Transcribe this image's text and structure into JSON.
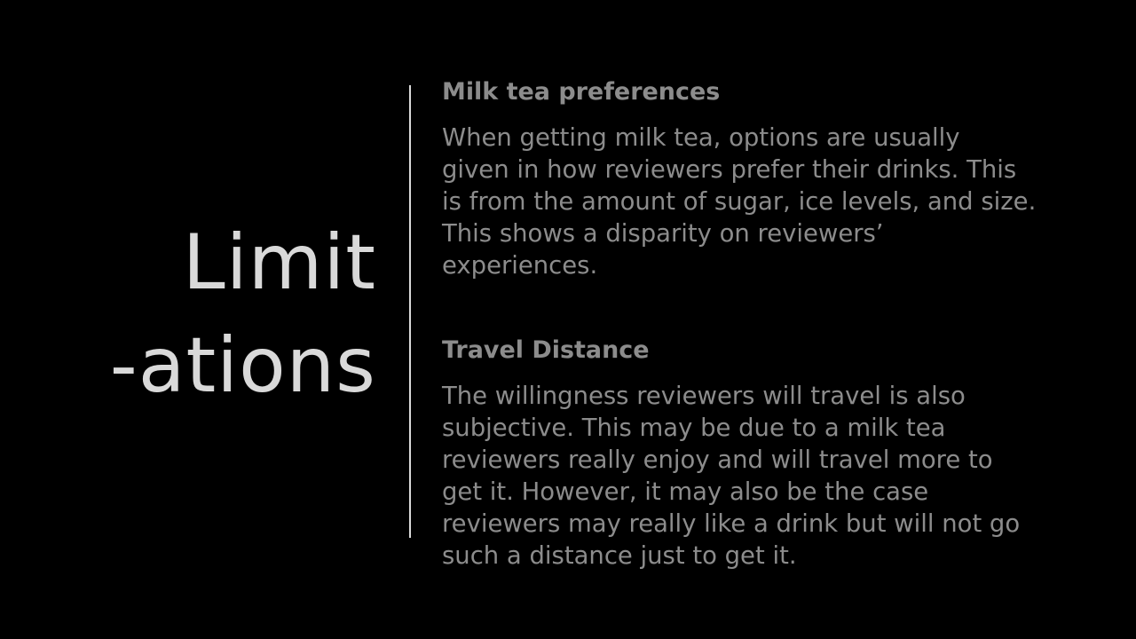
{
  "title": {
    "line1": "Limit",
    "line2": "-ations"
  },
  "sections": [
    {
      "heading": "Milk tea preferences",
      "lines": [
        "When getting milk tea, options are usually",
        "given in how reviewers prefer their drinks. This",
        "is from the amount of sugar, ice levels, and size.",
        "This shows a disparity on reviewers’",
        "experiences."
      ]
    },
    {
      "heading": "Travel Distance",
      "lines": [
        "The willingness reviewers will travel is also",
        "subjective. This may be due to a milk tea",
        "reviewers really enjoy and will travel more to",
        "get it. However, it may also be the case",
        "reviewers may really like a drink but will not go",
        "such a distance just to get it."
      ]
    }
  ],
  "colors": {
    "background": "#000000",
    "title": "#d9d9d9",
    "divider": "#d9d9d9",
    "text": "#8c8c8c"
  }
}
